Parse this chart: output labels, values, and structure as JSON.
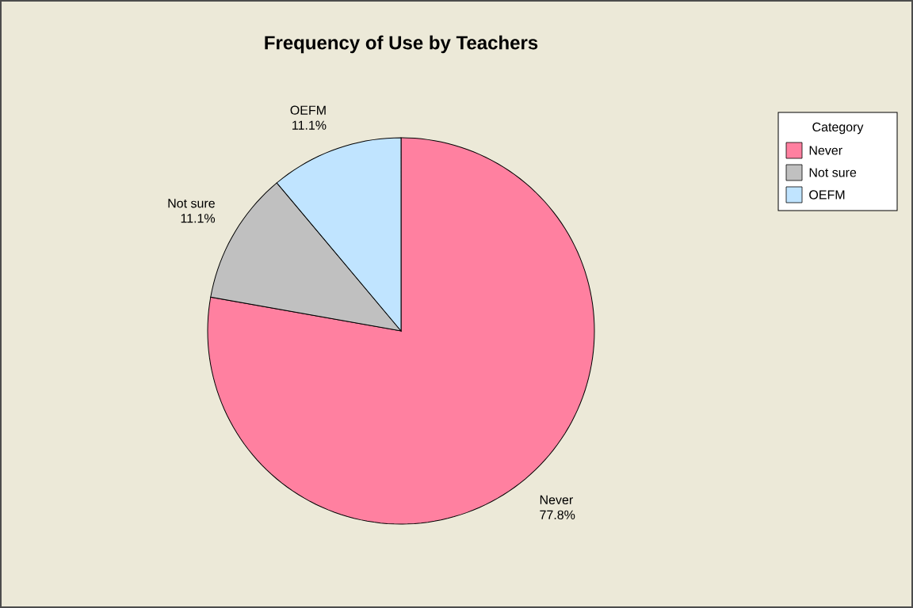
{
  "chart_data": {
    "type": "pie",
    "title": "Frequency of Use by Teachers",
    "legend_title": "Category",
    "legend": "top right",
    "categories": [
      "Never",
      "Not sure",
      "OEFM"
    ],
    "values": [
      77.8,
      11.1,
      11.1
    ],
    "value_labels": [
      "77.8%",
      "11.1%",
      "11.1%"
    ],
    "colors": [
      "#ff80a0",
      "#c0c0c0",
      "#c0e4ff"
    ]
  }
}
